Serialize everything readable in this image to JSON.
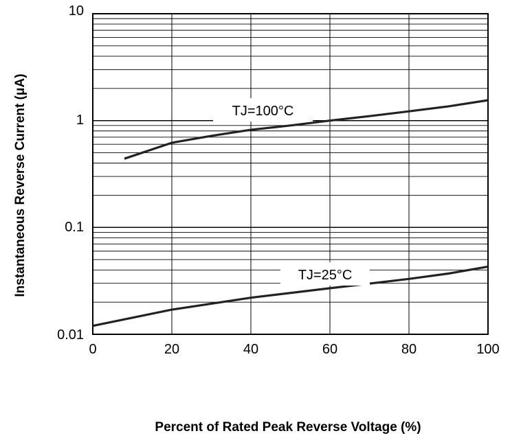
{
  "chart_data": {
    "type": "line",
    "xlabel": "Percent of Rated Peak Reverse Voltage (%)",
    "ylabel": "Instantaneous Reverse Current (μA)",
    "xlim": [
      0,
      100
    ],
    "ylim": [
      0.01,
      10
    ],
    "yscale": "log",
    "grid": true,
    "x_ticks": [
      "0",
      "20",
      "40",
      "60",
      "80",
      "100"
    ],
    "y_ticks": [
      "0.01",
      "0.1",
      "1",
      "10"
    ],
    "series": [
      {
        "name": "TJ=100°C",
        "x": [
          8,
          20,
          30,
          40,
          50,
          60,
          70,
          80,
          90,
          100
        ],
        "y": [
          0.44,
          0.62,
          0.72,
          0.82,
          0.9,
          1.0,
          1.1,
          1.22,
          1.36,
          1.55
        ]
      },
      {
        "name": "TJ=25°C",
        "x": [
          0,
          20,
          40,
          60,
          80,
          90,
          100
        ],
        "y": [
          0.012,
          0.017,
          0.022,
          0.027,
          0.033,
          0.037,
          0.043
        ]
      }
    ]
  }
}
